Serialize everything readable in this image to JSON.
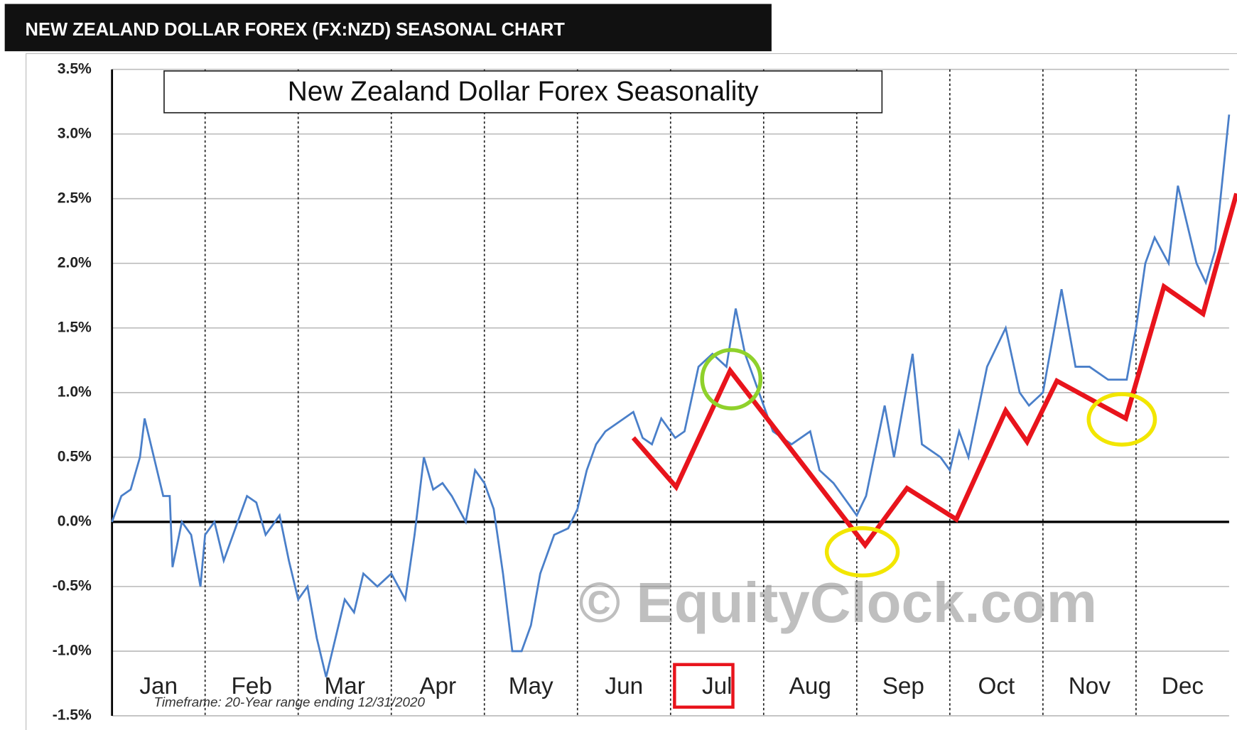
{
  "chart_data": {
    "type": "line",
    "header": "NEW ZEALAND DOLLAR FOREX (FX:NZD) SEASONAL CHART",
    "title": "New Zealand Dollar Forex Seasonality",
    "footnote": "Timeframe: 20-Year range ending 12/31/2020",
    "watermark": "© EquityClock.com",
    "month_labels": [
      "Jan",
      "Feb",
      "Mar",
      "Apr",
      "May",
      "Jun",
      "Jul",
      "Aug",
      "Sep",
      "Oct",
      "Nov",
      "Dec"
    ],
    "xlim": [
      0,
      12
    ],
    "ylim": [
      -1.5,
      3.5
    ],
    "yticks": [
      {
        "value": 3.5,
        "label": "3.5%"
      },
      {
        "value": 3.0,
        "label": "3.0%"
      },
      {
        "value": 2.5,
        "label": "2.5%"
      },
      {
        "value": 2.0,
        "label": "2.0%"
      },
      {
        "value": 1.5,
        "label": "1.5%"
      },
      {
        "value": 1.0,
        "label": "1.0%"
      },
      {
        "value": 0.5,
        "label": "0.5%"
      },
      {
        "value": 0.0,
        "label": "0.0%"
      },
      {
        "value": -0.5,
        "label": "-0.5%"
      },
      {
        "value": -1.0,
        "label": "-1.0%"
      },
      {
        "value": -1.5,
        "label": "-1.5%"
      }
    ],
    "grid": true,
    "series": [
      {
        "color": "#4a7fc9",
        "x": [
          0,
          0.1,
          0.2,
          0.3,
          0.35,
          0.45,
          0.55,
          0.62,
          0.65,
          0.75,
          0.85,
          0.95,
          1.0,
          1.1,
          1.2,
          1.3,
          1.45,
          1.55,
          1.65,
          1.8,
          1.9,
          2.0,
          2.1,
          2.2,
          2.3,
          2.4,
          2.5,
          2.6,
          2.7,
          2.85,
          3.0,
          3.15,
          3.25,
          3.35,
          3.45,
          3.55,
          3.65,
          3.8,
          3.9,
          4.0,
          4.1,
          4.2,
          4.3,
          4.4,
          4.5,
          4.6,
          4.75,
          4.9,
          5.0,
          5.1,
          5.2,
          5.3,
          5.5,
          5.6,
          5.7,
          5.8,
          5.9,
          6.05,
          6.15,
          6.3,
          6.45,
          6.6,
          6.7,
          6.8,
          6.95,
          7.1,
          7.3,
          7.5,
          7.6,
          7.75,
          7.9,
          8.0,
          8.1,
          8.3,
          8.4,
          8.6,
          8.7,
          8.9,
          9.0,
          9.1,
          9.2,
          9.4,
          9.6,
          9.75,
          9.85,
          10.0,
          10.2,
          10.35,
          10.5,
          10.7,
          10.9,
          11.0,
          11.1,
          11.2,
          11.35,
          11.45,
          11.55,
          11.65,
          11.75,
          11.85,
          12.0
        ],
        "values": [
          0.0,
          0.2,
          0.25,
          0.5,
          0.8,
          0.5,
          0.2,
          0.2,
          -0.35,
          0.0,
          -0.1,
          -0.5,
          -0.1,
          0.0,
          -0.3,
          -0.1,
          0.2,
          0.15,
          -0.1,
          0.05,
          -0.3,
          -0.6,
          -0.5,
          -0.9,
          -1.2,
          -0.9,
          -0.6,
          -0.7,
          -0.4,
          -0.5,
          -0.4,
          -0.6,
          -0.1,
          0.5,
          0.25,
          0.3,
          0.2,
          0.0,
          0.4,
          0.3,
          0.1,
          -0.4,
          -1.0,
          -1.0,
          -0.8,
          -0.4,
          -0.1,
          -0.05,
          0.1,
          0.4,
          0.6,
          0.7,
          0.8,
          0.85,
          0.65,
          0.6,
          0.8,
          0.65,
          0.7,
          1.2,
          1.3,
          1.2,
          1.65,
          1.3,
          1.0,
          0.7,
          0.6,
          0.7,
          0.4,
          0.3,
          0.15,
          0.05,
          0.2,
          0.9,
          0.5,
          1.3,
          0.6,
          0.5,
          0.4,
          0.7,
          0.5,
          1.2,
          1.5,
          1.0,
          0.9,
          1.0,
          1.8,
          1.2,
          1.2,
          1.1,
          1.1,
          1.5,
          2.0,
          2.2,
          2.0,
          2.6,
          2.3,
          2.0,
          1.85,
          2.1,
          3.15
        ]
      },
      {
        "color": "#e8141c",
        "x": [
          5.6,
          6.06,
          6.64,
          8.09,
          8.54,
          9.07,
          9.6,
          9.83,
          10.15,
          10.89,
          11.3,
          11.72,
          12.08
        ],
        "values": [
          0.65,
          0.27,
          1.17,
          -0.18,
          0.26,
          0.02,
          0.86,
          0.62,
          1.09,
          0.8,
          1.82,
          1.61,
          2.54
        ]
      }
    ]
  }
}
